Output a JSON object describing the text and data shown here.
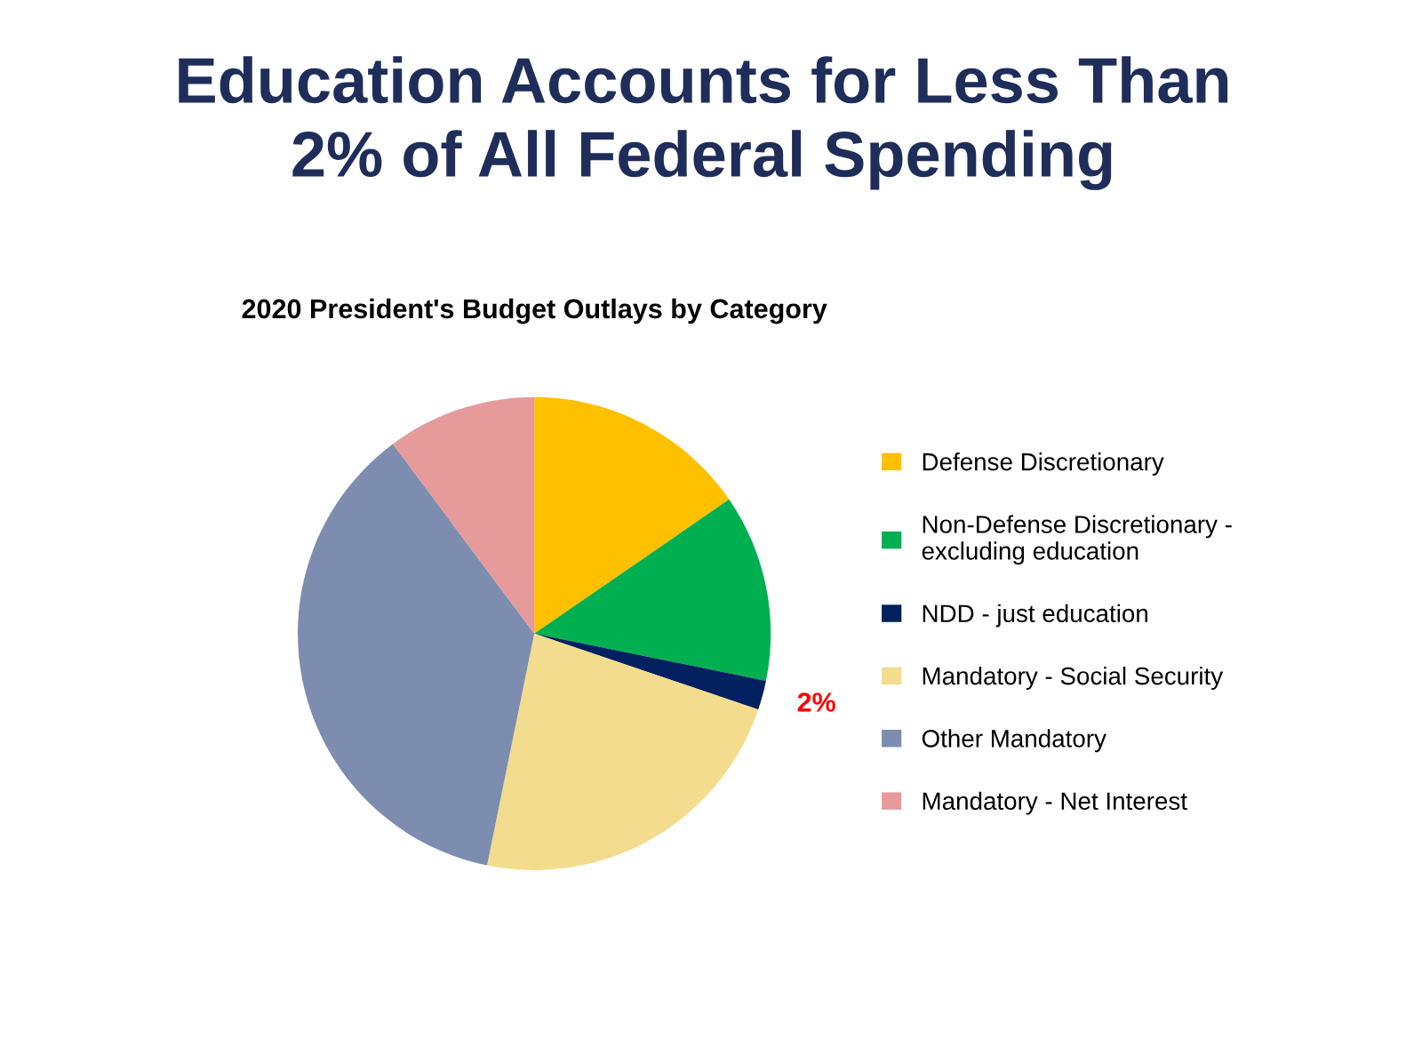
{
  "chart_data": {
    "type": "pie",
    "title": "Education Accounts for Less Than\n2% of All Federal Spending",
    "subtitle": "2020 President's Budget Outlays by Category",
    "categories": [
      "Defense Discretionary",
      "Non-Defense Discretionary -\nexcluding education",
      "NDD - just education",
      "Mandatory - Social Security",
      "Other Mandatory",
      "Mandatory - Net Interest"
    ],
    "values": [
      15.4,
      12.8,
      2,
      23,
      36.6,
      10.2
    ],
    "value_labels": [
      null,
      null,
      "2%",
      null,
      null,
      null
    ],
    "colors": [
      "#ffc000",
      "#00b050",
      "#002060",
      "#f3dc8e",
      "#7d8db0",
      "#e79a9a"
    ],
    "legend": "right"
  }
}
